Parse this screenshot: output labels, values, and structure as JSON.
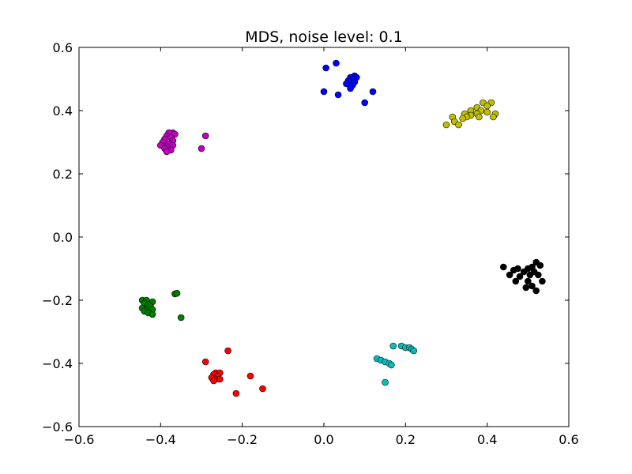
{
  "chart_data": {
    "type": "scatter",
    "title": "MDS, noise level: 0.1",
    "xlabel": "",
    "ylabel": "",
    "xlim": [
      -0.6,
      0.6
    ],
    "ylim": [
      -0.6,
      0.6
    ],
    "grid": false,
    "xticks": [
      -0.6,
      -0.4,
      -0.2,
      0.0,
      0.2,
      0.4,
      0.6
    ],
    "yticks": [
      -0.6,
      -0.4,
      -0.2,
      0.0,
      0.2,
      0.4,
      0.6
    ],
    "xtick_labels": [
      "−0.6",
      "−0.4",
      "−0.2",
      "0.0",
      "0.2",
      "0.4",
      "0.6"
    ],
    "ytick_labels": [
      "−0.6",
      "−0.4",
      "−0.2",
      "0.0",
      "0.2",
      "0.4",
      "0.6"
    ],
    "series": [
      {
        "color": "#0000ff",
        "points": [
          [
            0.03,
            0.55
          ],
          [
            0.005,
            0.535
          ],
          [
            0.075,
            0.51
          ],
          [
            0.065,
            0.505
          ],
          [
            0.08,
            0.505
          ],
          [
            0.07,
            0.5
          ],
          [
            0.06,
            0.495
          ],
          [
            0.075,
            0.49
          ],
          [
            0.055,
            0.485
          ],
          [
            0.07,
            0.48
          ],
          [
            0.065,
            0.47
          ],
          [
            0.0,
            0.46
          ],
          [
            0.12,
            0.46
          ],
          [
            0.035,
            0.45
          ],
          [
            0.1,
            0.425
          ]
        ]
      },
      {
        "color": "#bfbf00",
        "points": [
          [
            0.39,
            0.425
          ],
          [
            0.41,
            0.425
          ],
          [
            0.4,
            0.415
          ],
          [
            0.375,
            0.41
          ],
          [
            0.36,
            0.4
          ],
          [
            0.385,
            0.4
          ],
          [
            0.4,
            0.395
          ],
          [
            0.345,
            0.39
          ],
          [
            0.375,
            0.39
          ],
          [
            0.42,
            0.39
          ],
          [
            0.36,
            0.385
          ],
          [
            0.315,
            0.38
          ],
          [
            0.35,
            0.38
          ],
          [
            0.38,
            0.38
          ],
          [
            0.415,
            0.38
          ],
          [
            0.34,
            0.375
          ],
          [
            0.32,
            0.365
          ],
          [
            0.3,
            0.355
          ],
          [
            0.33,
            0.355
          ]
        ]
      },
      {
        "color": "#bf00bf",
        "points": [
          [
            -0.37,
            0.33
          ],
          [
            -0.38,
            0.33
          ],
          [
            -0.365,
            0.325
          ],
          [
            -0.385,
            0.32
          ],
          [
            -0.29,
            0.32
          ],
          [
            -0.375,
            0.315
          ],
          [
            -0.39,
            0.31
          ],
          [
            -0.37,
            0.305
          ],
          [
            -0.395,
            0.3
          ],
          [
            -0.38,
            0.295
          ],
          [
            -0.4,
            0.29
          ],
          [
            -0.37,
            0.29
          ],
          [
            -0.385,
            0.285
          ],
          [
            -0.39,
            0.28
          ],
          [
            -0.3,
            0.28
          ],
          [
            -0.375,
            0.275
          ],
          [
            -0.385,
            0.27
          ]
        ]
      },
      {
        "color": "#000000",
        "points": [
          [
            0.52,
            -0.08
          ],
          [
            0.53,
            -0.09
          ],
          [
            0.44,
            -0.095
          ],
          [
            0.475,
            -0.1
          ],
          [
            0.5,
            -0.1
          ],
          [
            0.51,
            -0.095
          ],
          [
            0.465,
            -0.105
          ],
          [
            0.49,
            -0.11
          ],
          [
            0.515,
            -0.11
          ],
          [
            0.455,
            -0.12
          ],
          [
            0.48,
            -0.125
          ],
          [
            0.505,
            -0.12
          ],
          [
            0.525,
            -0.12
          ],
          [
            0.47,
            -0.14
          ],
          [
            0.5,
            -0.14
          ],
          [
            0.535,
            -0.14
          ],
          [
            0.51,
            -0.155
          ],
          [
            0.495,
            -0.16
          ],
          [
            0.52,
            -0.17
          ]
        ]
      },
      {
        "color": "#007f00",
        "points": [
          [
            -0.445,
            -0.2
          ],
          [
            -0.435,
            -0.2
          ],
          [
            -0.42,
            -0.205
          ],
          [
            -0.44,
            -0.21
          ],
          [
            -0.43,
            -0.215
          ],
          [
            -0.425,
            -0.22
          ],
          [
            -0.445,
            -0.225
          ],
          [
            -0.435,
            -0.23
          ],
          [
            -0.42,
            -0.23
          ],
          [
            -0.44,
            -0.235
          ],
          [
            -0.43,
            -0.24
          ],
          [
            -0.42,
            -0.245
          ],
          [
            -0.365,
            -0.18
          ],
          [
            -0.36,
            -0.178
          ],
          [
            -0.35,
            -0.255
          ]
        ]
      },
      {
        "color": "#00bfbf",
        "points": [
          [
            0.17,
            -0.345
          ],
          [
            0.19,
            -0.345
          ],
          [
            0.2,
            -0.35
          ],
          [
            0.21,
            -0.35
          ],
          [
            0.215,
            -0.355
          ],
          [
            0.22,
            -0.36
          ],
          [
            0.13,
            -0.385
          ],
          [
            0.14,
            -0.39
          ],
          [
            0.15,
            -0.395
          ],
          [
            0.16,
            -0.4
          ],
          [
            0.165,
            -0.405
          ],
          [
            0.15,
            -0.46
          ]
        ]
      },
      {
        "color": "#ff0000",
        "points": [
          [
            -0.235,
            -0.36
          ],
          [
            -0.29,
            -0.395
          ],
          [
            -0.265,
            -0.43
          ],
          [
            -0.255,
            -0.43
          ],
          [
            -0.27,
            -0.435
          ],
          [
            -0.18,
            -0.44
          ],
          [
            -0.26,
            -0.44
          ],
          [
            -0.275,
            -0.445
          ],
          [
            -0.265,
            -0.45
          ],
          [
            -0.255,
            -0.45
          ],
          [
            -0.27,
            -0.455
          ],
          [
            -0.15,
            -0.48
          ],
          [
            -0.215,
            -0.495
          ]
        ]
      }
    ]
  }
}
